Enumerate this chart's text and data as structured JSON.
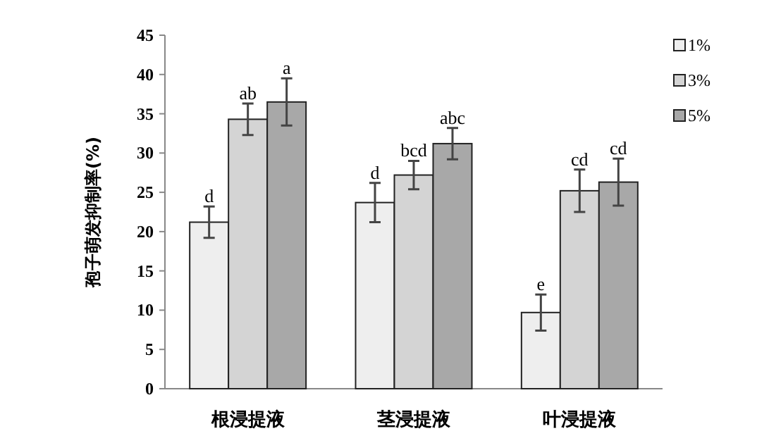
{
  "chart_data": {
    "type": "bar",
    "ylabel": "孢子萌发抑制率(%)",
    "categories": [
      "根浸提液",
      "茎浸提液",
      "叶浸提液"
    ],
    "series": [
      {
        "name": "1%",
        "color": "#eeeeee",
        "values": [
          21.2,
          23.7,
          9.7
        ],
        "errors": [
          2,
          2.5,
          2.3
        ],
        "value_labels": [
          "d",
          "d",
          "e"
        ]
      },
      {
        "name": "3%",
        "color": "#d4d4d4",
        "values": [
          34.3,
          27.2,
          25.2
        ],
        "errors": [
          2,
          1.8,
          2.7
        ],
        "value_labels": [
          "ab",
          "bcd",
          "cd"
        ]
      },
      {
        "name": "5%",
        "color": "#a8a8a8",
        "values": [
          36.5,
          31.2,
          26.3
        ],
        "errors": [
          3,
          2,
          3
        ],
        "value_labels": [
          "a",
          "abc",
          "cd"
        ]
      }
    ],
    "ylim": [
      0,
      45
    ],
    "yticks": [
      0,
      5,
      10,
      15,
      20,
      25,
      30,
      35,
      40,
      45
    ],
    "legend": "top right",
    "grid": false
  }
}
